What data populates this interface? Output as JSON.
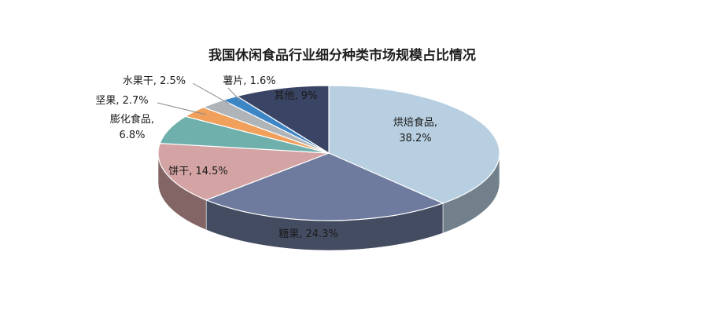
{
  "chart_data": {
    "type": "pie",
    "title": "我国休闲食品行业细分种类市场规模占比情况",
    "series": [
      {
        "slices": [
          {
            "name": "烘焙食品",
            "value": 38.2,
            "label_name": "烘焙食品,",
            "label_value": "38.2%",
            "color": "#b7cfe0"
          },
          {
            "name": "糖果",
            "value": 24.3,
            "label_name": "糖果, 24.3%",
            "label_value": "",
            "color": "#6e7b9e"
          },
          {
            "name": "饼干",
            "value": 14.5,
            "label_name": "饼干, 14.5%",
            "label_value": "",
            "color": "#d4a3a3"
          },
          {
            "name": "膨化食品",
            "value": 6.8,
            "label_name": "膨化食品,",
            "label_value": "6.8%",
            "color": "#6fb0ad"
          },
          {
            "name": "坚果",
            "value": 2.7,
            "label_name": "坚果, 2.7%",
            "label_value": "",
            "color": "#f0a05a"
          },
          {
            "name": "水果干",
            "value": 2.5,
            "label_name": "水果干, 2.5%",
            "label_value": "",
            "color": "#aeb4b8"
          },
          {
            "name": "薯片",
            "value": 1.6,
            "label_name": "薯片, 1.6%",
            "label_value": "",
            "color": "#3d86c6"
          },
          {
            "name": "其他",
            "value": 9,
            "label_name": "其他, 9%",
            "label_value": "",
            "color": "#3a4464"
          }
        ]
      }
    ],
    "legend": "none",
    "view": "3d-tilted"
  }
}
